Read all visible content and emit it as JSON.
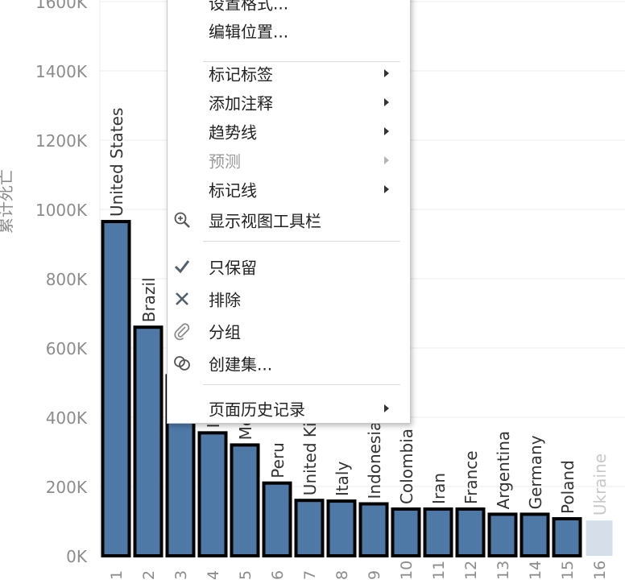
{
  "chart_data": {
    "type": "bar",
    "ylabel": "累计死亡",
    "ylim": [
      0,
      1600000
    ],
    "yticks": [
      {
        "value": 0,
        "label": "0K"
      },
      {
        "value": 200000,
        "label": "200K"
      },
      {
        "value": 400000,
        "label": "400K"
      },
      {
        "value": 600000,
        "label": "600K"
      },
      {
        "value": 800000,
        "label": "800K"
      },
      {
        "value": 1000000,
        "label": "1000K"
      },
      {
        "value": 1200000,
        "label": "1200K"
      },
      {
        "value": 1400000,
        "label": "1400K"
      },
      {
        "value": 1600000,
        "label": "1600K"
      }
    ],
    "grid": true,
    "categories": [
      "1",
      "2",
      "3",
      "4",
      "5",
      "6",
      "7",
      "8",
      "9",
      "10",
      "11",
      "12",
      "13",
      "14",
      "15",
      "16"
    ],
    "bar_labels": [
      "United States",
      "Brazil",
      "",
      "India",
      "Mexico",
      "Peru",
      "United Kingdom",
      "Italy",
      "Indonesia",
      "Colombia",
      "Iran",
      "France",
      "Argentina",
      "Germany",
      "Poland",
      "Ukraine"
    ],
    "values": [
      965000,
      660000,
      520000,
      355000,
      320000,
      210000,
      160000,
      158000,
      150000,
      135000,
      135000,
      135000,
      120000,
      120000,
      107000,
      102000
    ],
    "selected": [
      true,
      true,
      true,
      true,
      true,
      true,
      true,
      true,
      true,
      true,
      true,
      true,
      true,
      true,
      true,
      false
    ],
    "colors": {
      "bar": "#4e79a7",
      "bar_dim": "#d6dfe9",
      "outline": "#000000",
      "grid": "#ececec",
      "axis_text": "#8c8c8c"
    }
  },
  "context_menu": {
    "items": [
      {
        "label": "设置格式...",
        "submenu": false
      },
      {
        "label": "编辑位置...",
        "submenu": false
      },
      {
        "separator": true
      },
      {
        "label": "标记标签",
        "submenu": true
      },
      {
        "label": "添加注释",
        "submenu": true
      },
      {
        "label": "趋势线",
        "submenu": true
      },
      {
        "label": "预测",
        "submenu": true,
        "disabled": true
      },
      {
        "label": "标记线",
        "submenu": true
      },
      {
        "label": "显示视图工具栏",
        "icon": "zoom-in-icon"
      },
      {
        "separator": true
      },
      {
        "label": "只保留",
        "icon": "check-icon"
      },
      {
        "label": "排除",
        "icon": "close-icon"
      },
      {
        "label": "分组",
        "icon": "paperclip-icon"
      },
      {
        "label": "创建集...",
        "icon": "create-set-icon"
      },
      {
        "separator": true
      },
      {
        "label": "页面历史记录",
        "submenu": true
      }
    ]
  }
}
